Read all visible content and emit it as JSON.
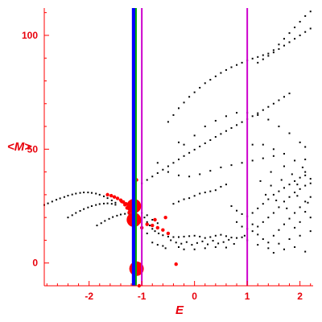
{
  "chart_data": {
    "type": "scatter",
    "title": "",
    "xlabel": "E",
    "ylabel": "<M>",
    "xlim": [
      -2.85,
      2.25
    ],
    "ylim": [
      -10,
      112
    ],
    "xticks": [
      -2,
      -1,
      0,
      1,
      2
    ],
    "yticks": [
      0,
      50,
      100
    ],
    "xtick_labels": [
      "-2",
      "-1",
      "0",
      "1",
      "2"
    ],
    "ytick_labels": [
      "0",
      "50",
      "100"
    ],
    "grid": false,
    "colors": {
      "axis": "#ff0000",
      "points": "#000000",
      "highlight": "#ff0000",
      "line_blue": "#0000ff",
      "line_green": "#00aa00",
      "line_magenta": "#cc00cc"
    },
    "vertical_lines": [
      {
        "x": -1.15,
        "color": "#0000ff"
      },
      {
        "x": -1.11,
        "color": "#00aa00"
      },
      {
        "x": -1.0,
        "color": "#cc00cc"
      },
      {
        "x": 1.0,
        "color": "#cc00cc"
      }
    ],
    "series": [
      {
        "color": "#000000",
        "points": [
          [
            -2.85,
            25.5
          ],
          [
            -2.78,
            26.2
          ],
          [
            -2.7,
            27.0
          ],
          [
            -2.62,
            27.8
          ],
          [
            -2.55,
            28.4
          ],
          [
            -2.47,
            29.0
          ],
          [
            -2.4,
            29.6
          ],
          [
            -2.32,
            30.1
          ],
          [
            -2.25,
            30.5
          ],
          [
            -2.17,
            30.8
          ],
          [
            -2.1,
            31.0
          ],
          [
            -2.02,
            31.0
          ],
          [
            -1.95,
            30.8
          ],
          [
            -1.87,
            30.5
          ],
          [
            -1.8,
            30.0
          ],
          [
            -1.72,
            29.3
          ],
          [
            -1.65,
            28.5
          ],
          [
            -1.57,
            27.5
          ],
          [
            -1.5,
            26.5
          ],
          [
            -2.4,
            20.0
          ],
          [
            -2.32,
            21.0
          ],
          [
            -2.25,
            22.0
          ],
          [
            -2.17,
            22.9
          ],
          [
            -2.1,
            23.7
          ],
          [
            -2.02,
            24.4
          ],
          [
            -1.95,
            25.0
          ],
          [
            -1.87,
            25.5
          ],
          [
            -1.8,
            25.9
          ],
          [
            -1.72,
            26.1
          ],
          [
            -1.65,
            26.2
          ],
          [
            -1.57,
            26.0
          ],
          [
            -1.5,
            25.6
          ],
          [
            -1.85,
            16.5
          ],
          [
            -1.77,
            17.5
          ],
          [
            -1.7,
            18.5
          ],
          [
            -1.62,
            19.4
          ],
          [
            -1.55,
            20.2
          ],
          [
            -1.47,
            20.8
          ],
          [
            -1.4,
            21.3
          ],
          [
            -1.32,
            21.6
          ],
          [
            -1.25,
            21.7
          ],
          [
            -1.0,
            22.0
          ],
          [
            -0.95,
            20.0
          ],
          [
            -0.9,
            18.0
          ],
          [
            -0.85,
            16.5
          ],
          [
            -0.8,
            15.0
          ],
          [
            -0.75,
            14.0
          ],
          [
            -0.68,
            13.0
          ],
          [
            -0.6,
            12.2
          ],
          [
            -0.5,
            11.6
          ],
          [
            -0.4,
            11.4
          ],
          [
            -0.3,
            11.4
          ],
          [
            -0.2,
            11.6
          ],
          [
            -0.1,
            11.8
          ],
          [
            0.0,
            12.0
          ],
          [
            0.1,
            11.6
          ],
          [
            0.2,
            11.0
          ],
          [
            0.3,
            11.4
          ],
          [
            0.4,
            12.0
          ],
          [
            0.5,
            12.4
          ],
          [
            0.6,
            11.8
          ],
          [
            0.7,
            11.2
          ],
          [
            0.8,
            11.0
          ],
          [
            0.9,
            11.3
          ],
          [
            0.95,
            12.0
          ],
          [
            -0.45,
            10.0
          ],
          [
            -0.35,
            9.0
          ],
          [
            -0.25,
            8.5
          ],
          [
            -0.15,
            9.2
          ],
          [
            -0.05,
            8.0
          ],
          [
            0.05,
            8.8
          ],
          [
            0.15,
            9.5
          ],
          [
            0.25,
            8.2
          ],
          [
            0.35,
            9.8
          ],
          [
            0.45,
            8.6
          ],
          [
            0.55,
            9.2
          ],
          [
            0.65,
            10.2
          ],
          [
            0.75,
            8.4
          ],
          [
            -0.8,
            9.0
          ],
          [
            -0.7,
            8.0
          ],
          [
            -0.6,
            7.5
          ],
          [
            -0.55,
            6.5
          ],
          [
            -0.3,
            7.0
          ],
          [
            -0.2,
            6.0
          ],
          [
            0.0,
            6.0
          ],
          [
            0.2,
            6.5
          ],
          [
            0.4,
            7.0
          ],
          [
            0.6,
            6.8
          ],
          [
            -1.0,
            35.0
          ],
          [
            -0.9,
            36.5
          ],
          [
            -0.8,
            38.0
          ],
          [
            -0.7,
            39.5
          ],
          [
            -0.6,
            41.0
          ],
          [
            -0.5,
            42.5
          ],
          [
            -0.4,
            44.0
          ],
          [
            -0.3,
            45.5
          ],
          [
            -0.2,
            47.0
          ],
          [
            -0.1,
            48.4
          ],
          [
            0.0,
            49.8
          ],
          [
            0.1,
            51.2
          ],
          [
            0.2,
            52.6
          ],
          [
            0.3,
            54.0
          ],
          [
            0.4,
            55.4
          ],
          [
            0.5,
            56.7
          ],
          [
            0.6,
            58.0
          ],
          [
            0.7,
            59.3
          ],
          [
            0.8,
            60.6
          ],
          [
            0.9,
            61.9
          ],
          [
            1.0,
            63.2
          ],
          [
            1.1,
            64.5
          ],
          [
            1.2,
            65.8
          ],
          [
            1.3,
            67.2
          ],
          [
            1.4,
            68.6
          ],
          [
            1.5,
            70.0
          ],
          [
            1.6,
            71.5
          ],
          [
            1.7,
            73.0
          ],
          [
            1.8,
            74.5
          ],
          [
            -0.5,
            62.0
          ],
          [
            -0.4,
            65.0
          ],
          [
            -0.3,
            68.0
          ],
          [
            -0.2,
            70.5
          ],
          [
            -0.1,
            73.0
          ],
          [
            0.0,
            75.0
          ],
          [
            0.1,
            77.0
          ],
          [
            0.2,
            79.0
          ],
          [
            0.3,
            80.5
          ],
          [
            0.4,
            82.0
          ],
          [
            0.5,
            83.5
          ],
          [
            0.6,
            84.8
          ],
          [
            0.7,
            86.0
          ],
          [
            0.8,
            87.0
          ],
          [
            0.9,
            88.0
          ],
          [
            1.0,
            89.0
          ],
          [
            1.1,
            89.8
          ],
          [
            1.2,
            90.5
          ],
          [
            1.3,
            91.3
          ],
          [
            1.4,
            92.0
          ],
          [
            1.5,
            93.5
          ],
          [
            1.6,
            96.0
          ],
          [
            1.7,
            98.5
          ],
          [
            1.8,
            101.0
          ],
          [
            1.9,
            103.5
          ],
          [
            2.0,
            106.0
          ],
          [
            2.1,
            108.5
          ],
          [
            2.2,
            110.5
          ],
          [
            1.2,
            88.0
          ],
          [
            1.3,
            89.5
          ],
          [
            1.4,
            91.0
          ],
          [
            1.5,
            92.5
          ],
          [
            1.6,
            94.0
          ],
          [
            1.7,
            95.5
          ],
          [
            1.8,
            97.0
          ],
          [
            1.9,
            98.5
          ],
          [
            2.0,
            100.0
          ],
          [
            2.1,
            101.5
          ],
          [
            2.2,
            103.0
          ],
          [
            -0.3,
            53.0
          ],
          [
            -0.2,
            52.0
          ],
          [
            0.0,
            56.0
          ],
          [
            0.2,
            60.0
          ],
          [
            0.4,
            62.5
          ],
          [
            0.6,
            64.5
          ],
          [
            0.8,
            66.0
          ],
          [
            1.0,
            66.0
          ],
          [
            1.2,
            65.0
          ],
          [
            1.4,
            63.0
          ],
          [
            1.6,
            60.0
          ],
          [
            1.8,
            57.0
          ],
          [
            2.0,
            53.0
          ],
          [
            2.1,
            51.0
          ],
          [
            1.1,
            52.0
          ],
          [
            1.3,
            52.0
          ],
          [
            1.5,
            50.0
          ],
          [
            1.7,
            48.0
          ],
          [
            1.9,
            45.0
          ],
          [
            2.1,
            40.0
          ],
          [
            2.2,
            37.0
          ],
          [
            -0.7,
            44.0
          ],
          [
            -0.5,
            40.0
          ],
          [
            -0.3,
            38.5
          ],
          [
            -0.1,
            38.0
          ],
          [
            0.1,
            39.0
          ],
          [
            0.3,
            40.5
          ],
          [
            0.5,
            42.0
          ],
          [
            0.7,
            43.0
          ],
          [
            0.9,
            44.0
          ],
          [
            1.1,
            45.0
          ],
          [
            1.3,
            46.0
          ],
          [
            1.5,
            47.0
          ],
          [
            -0.4,
            26.0
          ],
          [
            -0.3,
            27.0
          ],
          [
            -0.2,
            28.0
          ],
          [
            -0.1,
            28.5
          ],
          [
            0.0,
            29.5
          ],
          [
            0.1,
            30.5
          ],
          [
            0.2,
            31.0
          ],
          [
            0.3,
            31.5
          ],
          [
            0.4,
            32.0
          ],
          [
            0.5,
            33.5
          ],
          [
            0.6,
            34.5
          ],
          [
            0.7,
            25.0
          ],
          [
            0.8,
            23.0
          ],
          [
            0.9,
            21.5
          ],
          [
            1.0,
            20.5
          ],
          [
            1.1,
            22.0
          ],
          [
            1.2,
            24.0
          ],
          [
            1.3,
            26.0
          ],
          [
            1.4,
            28.0
          ],
          [
            1.5,
            30.0
          ],
          [
            1.6,
            31.5
          ],
          [
            1.7,
            33.0
          ],
          [
            1.8,
            34.5
          ],
          [
            1.9,
            36.0
          ],
          [
            2.0,
            37.5
          ],
          [
            2.1,
            38.5
          ],
          [
            1.1,
            14.0
          ],
          [
            1.2,
            16.0
          ],
          [
            1.3,
            18.0
          ],
          [
            1.4,
            20.0
          ],
          [
            1.5,
            22.0
          ],
          [
            1.6,
            24.5
          ],
          [
            1.7,
            27.0
          ],
          [
            1.8,
            29.0
          ],
          [
            1.9,
            31.0
          ],
          [
            2.0,
            32.5
          ],
          [
            2.1,
            34.0
          ],
          [
            2.2,
            35.0
          ],
          [
            0.8,
            18.0
          ],
          [
            0.9,
            16.0
          ],
          [
            1.0,
            15.0
          ],
          [
            1.1,
            17.0
          ],
          [
            1.2,
            12.5
          ],
          [
            1.3,
            10.5
          ],
          [
            1.4,
            9.0
          ],
          [
            1.5,
            12.0
          ],
          [
            1.6,
            14.5
          ],
          [
            1.7,
            17.0
          ],
          [
            1.8,
            19.5
          ],
          [
            1.9,
            22.0
          ],
          [
            2.0,
            24.5
          ],
          [
            2.1,
            27.0
          ],
          [
            2.2,
            29.0
          ],
          [
            1.0,
            10.0
          ],
          [
            1.2,
            8.0
          ],
          [
            1.4,
            6.5
          ],
          [
            1.6,
            8.5
          ],
          [
            1.8,
            10.5
          ],
          [
            2.0,
            12.0
          ],
          [
            2.2,
            14.0
          ],
          [
            2.1,
            5.0
          ],
          [
            1.9,
            7.0
          ],
          [
            1.7,
            6.0
          ],
          [
            1.5,
            4.5
          ],
          [
            2.0,
            18.0
          ],
          [
            1.9,
            15.5
          ],
          [
            2.2,
            20.0
          ],
          [
            2.1,
            22.5
          ],
          [
            1.35,
            30.0
          ],
          [
            1.45,
            34.0
          ],
          [
            1.55,
            27.5
          ],
          [
            1.65,
            36.5
          ],
          [
            1.75,
            24.0
          ],
          [
            1.85,
            39.0
          ],
          [
            1.95,
            29.5
          ],
          [
            2.05,
            42.0
          ],
          [
            2.15,
            26.5
          ],
          [
            1.25,
            36.0
          ],
          [
            1.45,
            40.0
          ],
          [
            1.7,
            42.5
          ],
          [
            1.95,
            34.5
          ],
          [
            2.1,
            45.5
          ],
          [
            -0.9,
            21.0
          ],
          [
            -0.8,
            19.0
          ],
          [
            -0.7,
            17.5
          ],
          [
            -0.9,
            13.0
          ]
        ]
      },
      {
        "color": "#ff0000",
        "points": [
          [
            -1.65,
            30.0
          ],
          [
            -1.58,
            29.6
          ],
          [
            -1.52,
            29.0
          ],
          [
            -1.46,
            28.4
          ],
          [
            -1.4,
            27.6
          ],
          [
            -1.35,
            26.8
          ],
          [
            -1.3,
            26.0
          ],
          [
            -1.25,
            25.4
          ],
          [
            -1.2,
            24.4
          ],
          [
            -1.38,
            27.0
          ],
          [
            -1.32,
            25.6
          ],
          [
            -1.28,
            24.2
          ],
          [
            -1.24,
            22.2
          ],
          [
            -1.22,
            20.2
          ],
          [
            -1.18,
            18.8
          ],
          [
            -1.1,
            36.5
          ],
          [
            -1.05,
            18.0
          ],
          [
            -1.0,
            15.5
          ],
          [
            -0.9,
            17.0
          ],
          [
            -0.8,
            16.5
          ],
          [
            -0.75,
            19.0
          ],
          [
            -0.55,
            20.0
          ],
          [
            -0.7,
            15.5
          ],
          [
            -0.6,
            14.5
          ],
          [
            -0.5,
            13.0
          ],
          [
            -0.35,
            -0.5
          ],
          [
            -1.05,
            -10.0
          ]
        ]
      },
      {
        "color": "#ff0000",
        "big": true,
        "points": [
          [
            -1.1,
            -2.5
          ],
          [
            -1.15,
            25.0
          ],
          [
            -1.15,
            19.0
          ]
        ]
      }
    ]
  }
}
